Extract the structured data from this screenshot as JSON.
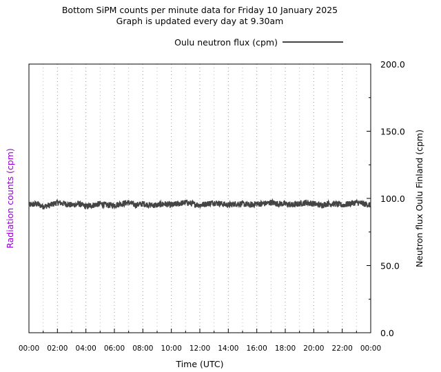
{
  "chart_data": {
    "type": "line",
    "title_line1": "Bottom SiPM counts per minute data for Friday 10 January 2025",
    "title_line2": "Graph is updated every day at 9.30am",
    "xlabel": "Time (UTC)",
    "ylabel_left": "Radiation counts (cpm)",
    "ylabel_right": "Neutron flux Oulu Finland (cpm)",
    "ylim": [
      0,
      200
    ],
    "yticks": [
      "0.0",
      "50.0",
      "100.0",
      "150.0",
      "200.0"
    ],
    "xlim": [
      "00:00",
      "24:00"
    ],
    "xticks": [
      "00:00",
      "02:00",
      "04:00",
      "06:00",
      "08:00",
      "10:00",
      "12:00",
      "14:00",
      "16:00",
      "18:00",
      "20:00",
      "22:00",
      "00:00"
    ],
    "grid_x": "dotted",
    "legend_position": "top-right",
    "series": [
      {
        "name": "Oulu neutron flux (cpm)",
        "color": "#444444",
        "axis": "right",
        "x_hours": [
          0,
          0.5,
          1,
          1.5,
          2,
          2.5,
          3,
          3.5,
          4,
          4.5,
          5,
          5.5,
          6,
          6.5,
          7,
          7.5,
          8,
          8.5,
          9,
          9.5,
          10,
          10.5,
          11,
          11.5,
          12,
          12.5,
          13,
          13.5,
          14,
          14.5,
          15,
          15.5,
          16,
          16.5,
          17,
          17.5,
          18,
          18.5,
          19,
          19.5,
          20,
          20.5,
          21,
          21.5,
          22,
          22.5,
          23,
          23.5,
          24
        ],
        "values": [
          95,
          96,
          94,
          95,
          97,
          96,
          95,
          96,
          94,
          95,
          96,
          95,
          95,
          96,
          97,
          95,
          96,
          95,
          95,
          96,
          95,
          96,
          97,
          96,
          95,
          96,
          97,
          96,
          95,
          96,
          96,
          95,
          96,
          96,
          97,
          96,
          96,
          95,
          96,
          97,
          96,
          95,
          96,
          96,
          95,
          96,
          97,
          96,
          95
        ]
      }
    ]
  }
}
